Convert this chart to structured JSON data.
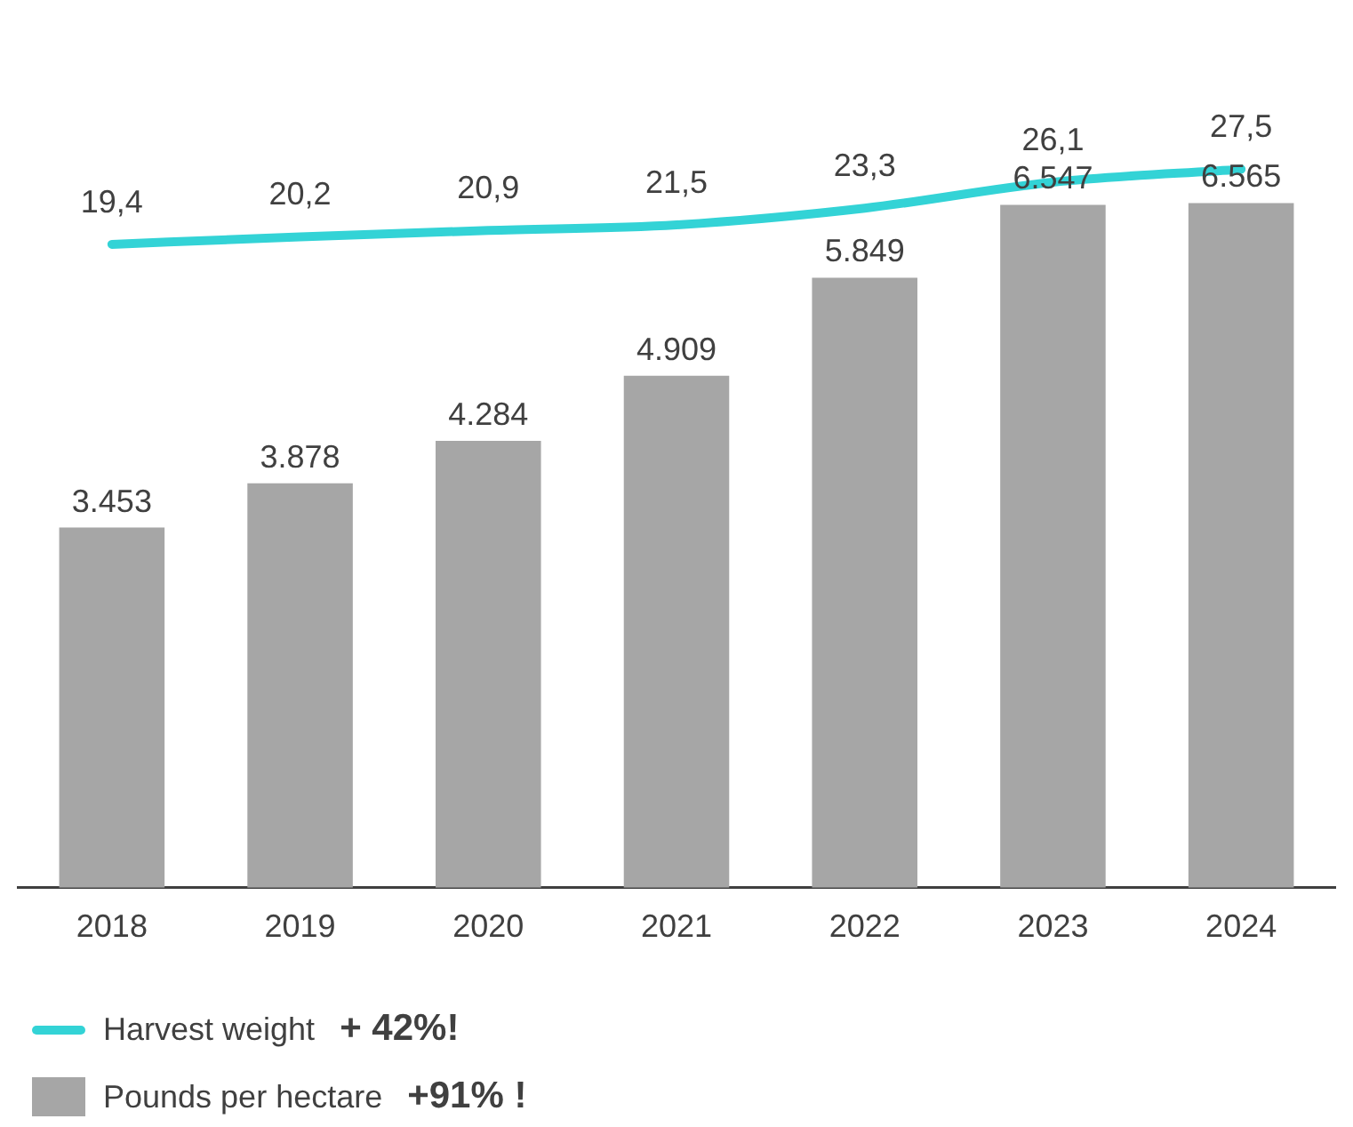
{
  "chart_data": {
    "type": "bar",
    "categories": [
      "2018",
      "2019",
      "2020",
      "2021",
      "2022",
      "2023",
      "2024"
    ],
    "series": [
      {
        "name": "Harvest weight",
        "type": "line",
        "axis": "y2",
        "color": "#33d3d6",
        "values": [
          19.4,
          20.2,
          20.9,
          21.5,
          23.3,
          26.1,
          27.5
        ],
        "value_labels": [
          "19,4",
          "20,2",
          "20,9",
          "21,5",
          "23,3",
          "26,1",
          "27,5"
        ]
      },
      {
        "name": "Pounds per hectare",
        "type": "bar",
        "color": "#a6a6a6",
        "values": [
          3453,
          3878,
          4284,
          4909,
          5849,
          6547,
          6565
        ],
        "value_labels": [
          "3.453",
          "3.878",
          "4.284",
          "4.909",
          "5.849",
          "6.547",
          "6.565"
        ]
      }
    ],
    "tick_labels": "x",
    "grid": false,
    "legend": "bottom left",
    "marker": "none",
    "annotations": [
      "+ 42%!",
      "+91% !"
    ]
  }
}
